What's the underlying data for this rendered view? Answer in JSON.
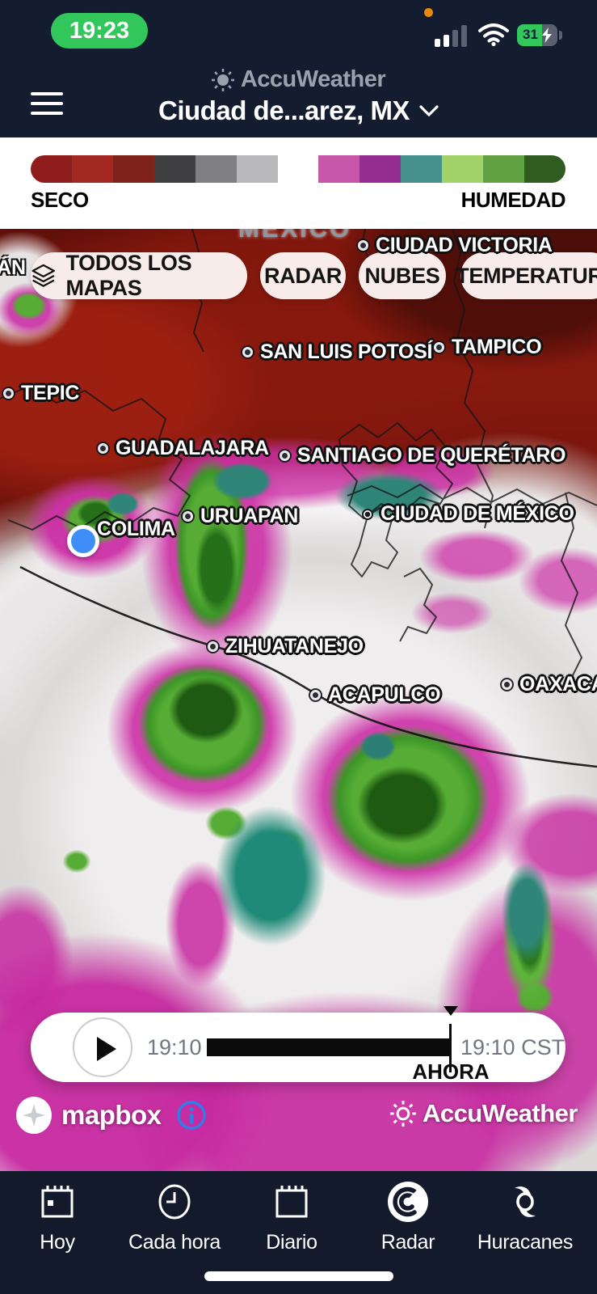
{
  "status_bar": {
    "time": "19:23",
    "battery_percent": "31"
  },
  "header": {
    "brand": "AccuWeather",
    "location": "Ciudad de...arez, MX"
  },
  "legend": {
    "left_label": "SECO",
    "right_label": "HUMEDAD",
    "colors": [
      "#8f1d1d",
      "#a42822",
      "#7e221a",
      "#3f3f41",
      "#808083",
      "#b9b9bb",
      "#ffffff",
      "#c757a8",
      "#962d90",
      "#47918d",
      "#a2d36a",
      "#63a244",
      "#2f5d21"
    ]
  },
  "map": {
    "country_label": "MÉXICO",
    "edge_label": "ÁN",
    "buttons": [
      {
        "label": "TODOS LOS MAPAS"
      },
      {
        "label": "RADAR"
      },
      {
        "label": "NUBES"
      },
      {
        "label": "TEMPERATURA"
      }
    ],
    "cities": [
      {
        "name": "CIUDAD VICTORIA"
      },
      {
        "name": "SAN LUIS POTOSÍ"
      },
      {
        "name": "TAMPICO"
      },
      {
        "name": "TEPIC"
      },
      {
        "name": "GUADALAJARA"
      },
      {
        "name": "SANTIAGO DE QUERÉTARO"
      },
      {
        "name": "COLIMA"
      },
      {
        "name": "URUAPAN"
      },
      {
        "name": "CIUDAD DE MÉXICO"
      },
      {
        "name": "ZIHUATANEJO"
      },
      {
        "name": "ACAPULCO"
      },
      {
        "name": "OAXACA"
      }
    ],
    "attribution": {
      "mapbox_label": "mapbox",
      "accuweather_label": "AccuWeather"
    }
  },
  "playback": {
    "start_time": "19:10",
    "current_time": "19:10 CST",
    "now_label": "AHORA"
  },
  "bottom_nav": {
    "items": [
      {
        "label": "Hoy"
      },
      {
        "label": "Cada hora"
      },
      {
        "label": "Diario"
      },
      {
        "label": "Radar",
        "active": true
      },
      {
        "label": "Huracanes"
      }
    ]
  },
  "colors": {
    "time_pill_green": "#31c75a",
    "location_dot_blue": "#3f8ef7",
    "info_blue": "#2a7fe8"
  }
}
